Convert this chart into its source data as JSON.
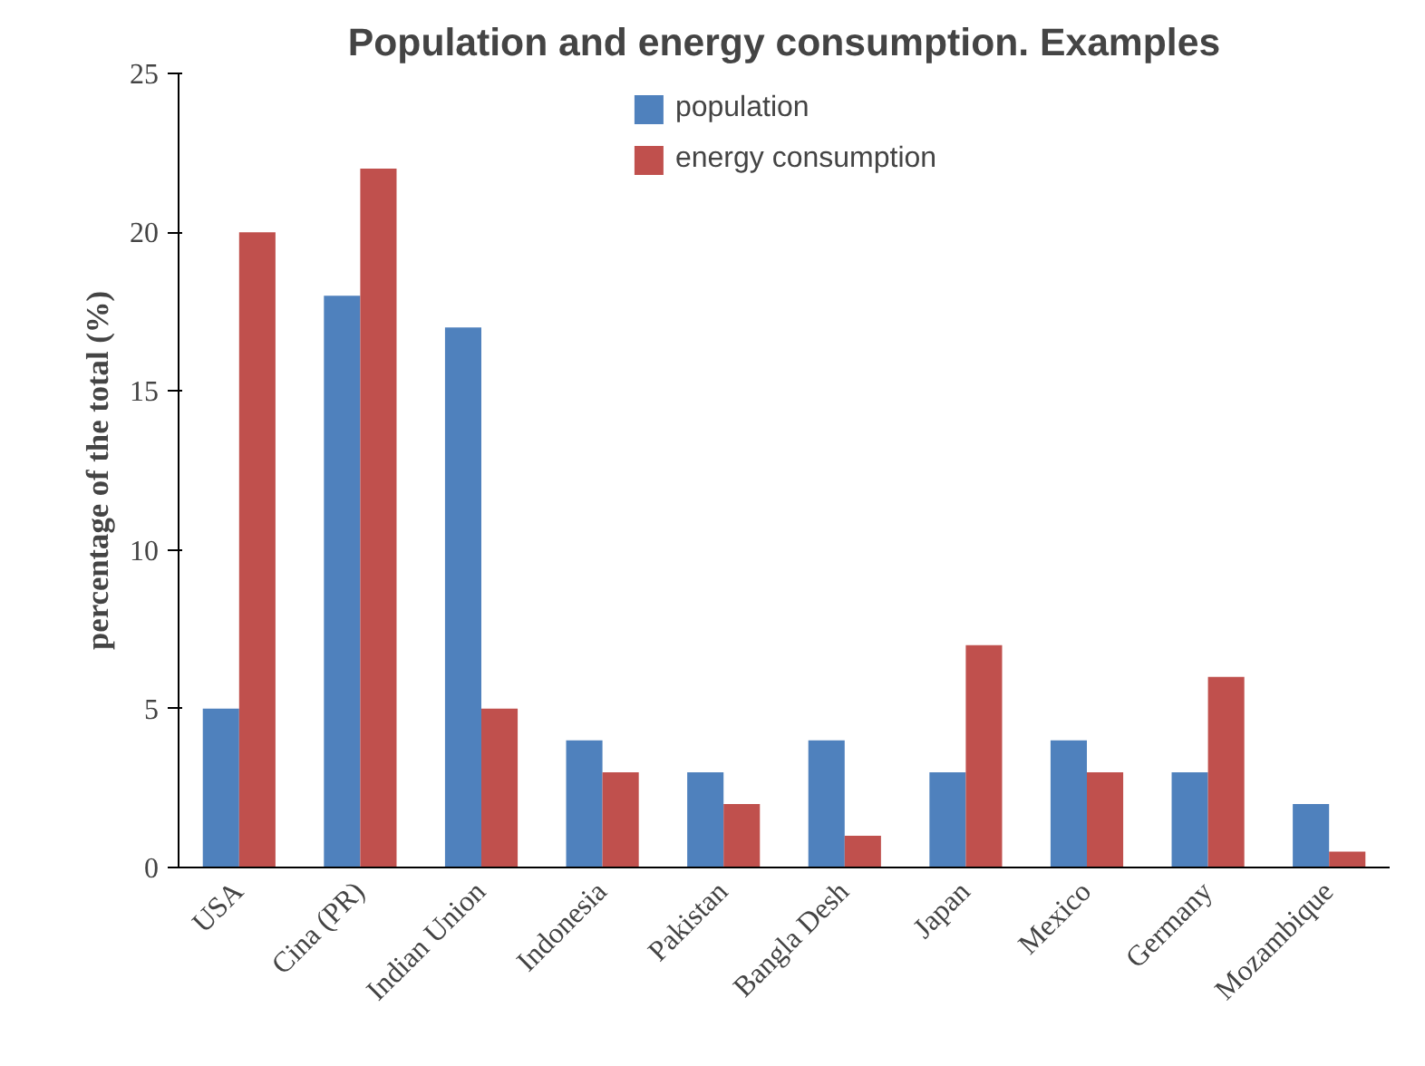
{
  "chart_data": {
    "type": "bar",
    "title": "Population and energy consumption. Examples",
    "ylabel": "percentage of the total (%)",
    "categories": [
      "USA",
      "Cina (PR)",
      "Indian Union",
      "Indonesia",
      "Pakistan",
      "Bangla Desh",
      "Japan",
      "Mexico",
      "Germany",
      "Mozambique"
    ],
    "series": [
      {
        "name": "population",
        "color": "#4f81bd",
        "values": [
          5,
          18,
          17,
          4,
          3,
          4,
          3,
          4,
          3,
          2
        ]
      },
      {
        "name": "energy consumption",
        "color": "#c0504d",
        "values": [
          20,
          22,
          5,
          3,
          2,
          1,
          7,
          3,
          6,
          0.5
        ]
      }
    ],
    "ylim": [
      0,
      25
    ],
    "yticks": [
      0,
      5,
      10,
      15,
      20,
      25
    ],
    "grid": false,
    "legend": "top"
  }
}
